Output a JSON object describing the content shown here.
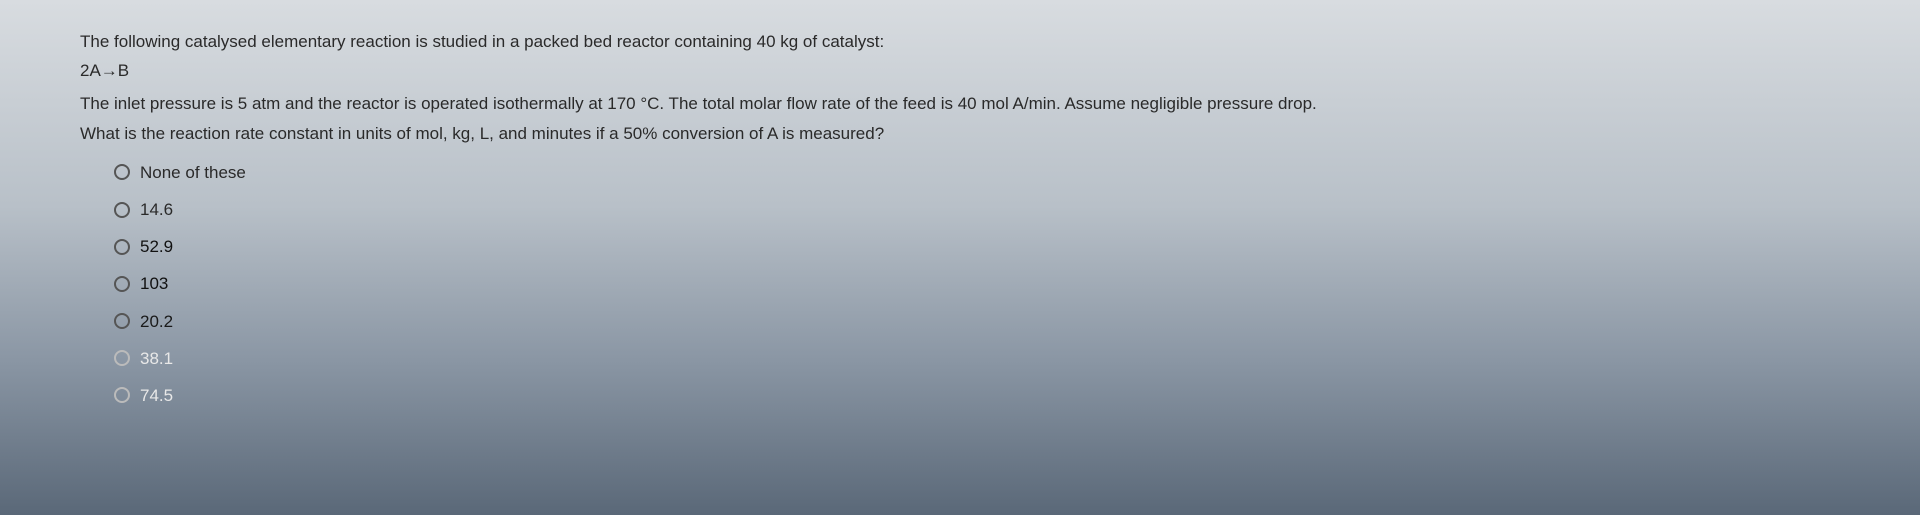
{
  "question": {
    "intro": "The following catalysed elementary reaction is studied in a packed bed reactor containing 40 kg of catalyst:",
    "reaction": "2A→B",
    "context": "The inlet pressure is 5 atm and the reactor is operated isothermally at 170 °C. The total molar flow rate of the feed is 40 mol A/min. Assume negligible pressure drop.",
    "prompt": "What is the reaction rate constant in units of mol, kg, L, and minutes if a 50% conversion of A is measured?"
  },
  "options": [
    {
      "label": "None of these"
    },
    {
      "label": "14.6"
    },
    {
      "label": "52.9"
    },
    {
      "label": "103"
    },
    {
      "label": "20.2"
    },
    {
      "label": "38.1"
    },
    {
      "label": "74.5"
    }
  ]
}
